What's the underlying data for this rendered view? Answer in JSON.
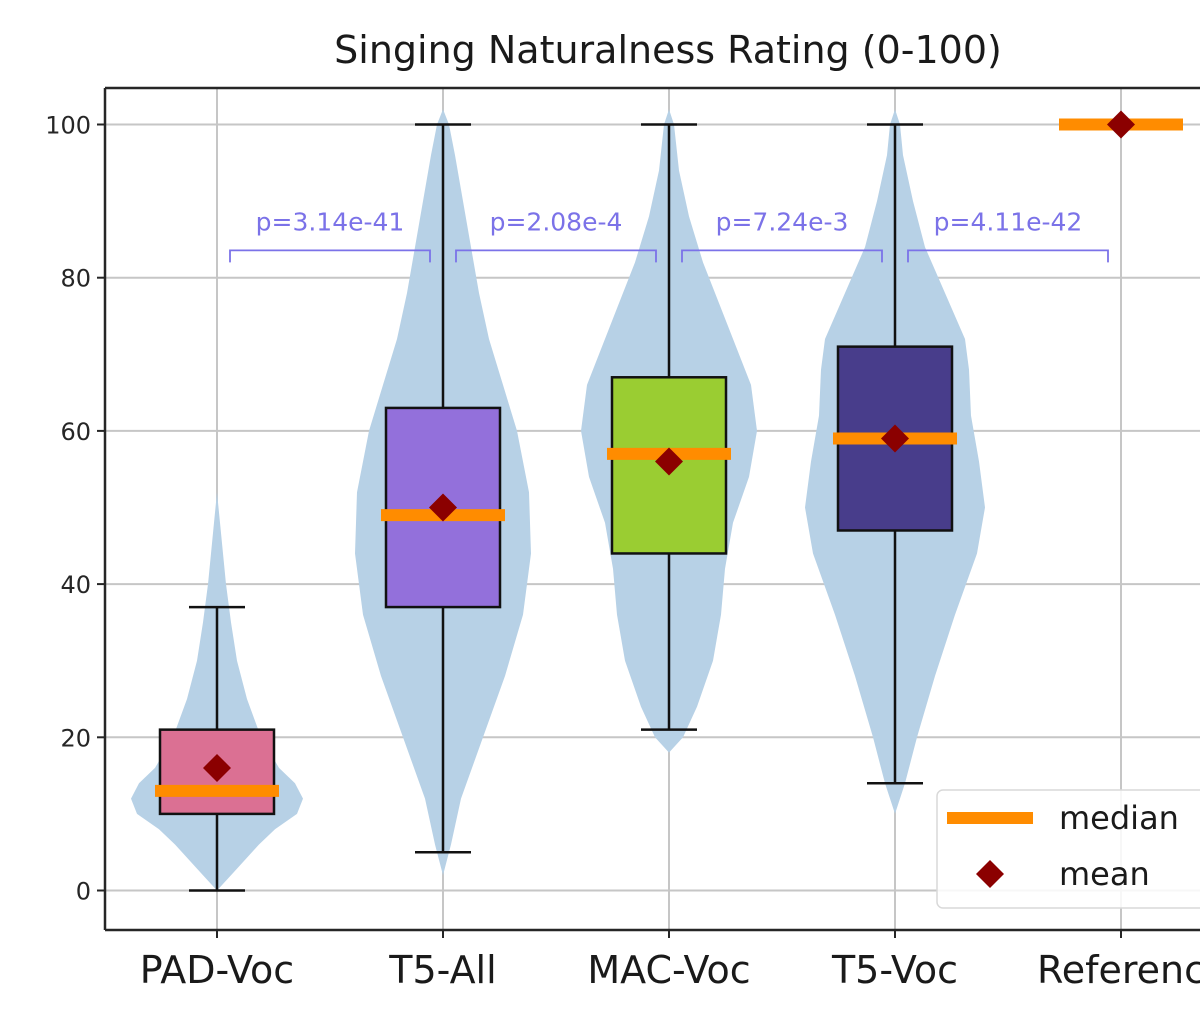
{
  "chart_data": {
    "type": "box-violin",
    "title": "Singing Naturalness Rating (0-100)",
    "ylim": [
      -5,
      105
    ],
    "yticks": [
      0,
      20,
      40,
      60,
      80,
      100
    ],
    "grid": true,
    "categories": [
      "PAD-Voc",
      "T5-All",
      "MAC-Voc",
      "T5-Voc",
      "Referenc"
    ],
    "boxes": [
      {
        "name": "PAD-Voc",
        "min": 0,
        "q1": 10,
        "median": 13,
        "q3": 21,
        "max": 37,
        "mean": 16,
        "color": "#db7093",
        "violin": [
          [
            0,
            0
          ],
          [
            2,
            14
          ],
          [
            4,
            28
          ],
          [
            6,
            42
          ],
          [
            8,
            58
          ],
          [
            10,
            80
          ],
          [
            12,
            86
          ],
          [
            14,
            78
          ],
          [
            16,
            62
          ],
          [
            20,
            44
          ],
          [
            25,
            30
          ],
          [
            30,
            20
          ],
          [
            35,
            14
          ],
          [
            40,
            9
          ],
          [
            44,
            6
          ],
          [
            48,
            3
          ],
          [
            52,
            0
          ]
        ]
      },
      {
        "name": "T5-All",
        "min": 5,
        "q1": 37,
        "median": 49,
        "q3": 63,
        "max": 100,
        "mean": 50,
        "color": "#9370db",
        "violin": [
          [
            2,
            0
          ],
          [
            6,
            8
          ],
          [
            12,
            18
          ],
          [
            20,
            40
          ],
          [
            28,
            62
          ],
          [
            36,
            80
          ],
          [
            44,
            88
          ],
          [
            52,
            86
          ],
          [
            60,
            74
          ],
          [
            66,
            60
          ],
          [
            72,
            46
          ],
          [
            78,
            36
          ],
          [
            84,
            28
          ],
          [
            90,
            20
          ],
          [
            96,
            12
          ],
          [
            100,
            6
          ],
          [
            102,
            0
          ]
        ]
      },
      {
        "name": "MAC-Voc",
        "min": 21,
        "q1": 44,
        "median": 57,
        "q3": 67,
        "max": 100,
        "mean": 56,
        "color": "#9acd32",
        "violin": [
          [
            18,
            0
          ],
          [
            20,
            14
          ],
          [
            24,
            28
          ],
          [
            30,
            44
          ],
          [
            36,
            52
          ],
          [
            42,
            56
          ],
          [
            48,
            64
          ],
          [
            54,
            80
          ],
          [
            60,
            88
          ],
          [
            66,
            82
          ],
          [
            70,
            70
          ],
          [
            76,
            52
          ],
          [
            82,
            34
          ],
          [
            88,
            20
          ],
          [
            94,
            10
          ],
          [
            100,
            5
          ],
          [
            102,
            0
          ]
        ]
      },
      {
        "name": "T5-Voc",
        "min": 14,
        "q1": 47,
        "median": 59,
        "q3": 71,
        "max": 100,
        "mean": 59,
        "color": "#483d8b",
        "violin": [
          [
            10,
            0
          ],
          [
            14,
            10
          ],
          [
            20,
            22
          ],
          [
            28,
            40
          ],
          [
            36,
            60
          ],
          [
            44,
            82
          ],
          [
            50,
            90
          ],
          [
            56,
            84
          ],
          [
            62,
            76
          ],
          [
            68,
            74
          ],
          [
            72,
            70
          ],
          [
            78,
            50
          ],
          [
            84,
            30
          ],
          [
            90,
            18
          ],
          [
            96,
            8
          ],
          [
            100,
            5
          ],
          [
            102,
            0
          ]
        ]
      },
      {
        "name": "Referenc",
        "min": 100,
        "q1": 100,
        "median": 100,
        "q3": 100,
        "max": 100,
        "mean": 100,
        "color": "#ff8c00",
        "violin": []
      }
    ],
    "pvalues": [
      {
        "from": 0,
        "to": 1,
        "label": "p=3.14e-41",
        "y": 82
      },
      {
        "from": 1,
        "to": 2,
        "label": "p=2.08e-4",
        "y": 82
      },
      {
        "from": 2,
        "to": 3,
        "label": "p=7.24e-3",
        "y": 82
      },
      {
        "from": 3,
        "to": 4,
        "label": "p=4.11e-42",
        "y": 82
      }
    ],
    "legend": {
      "position": "bottom-right",
      "items": [
        {
          "label": "median",
          "marker": "line",
          "color": "#ff8c00"
        },
        {
          "label": "mean",
          "marker": "diamond",
          "color": "#8b0000"
        }
      ]
    },
    "colors": {
      "violin": "#b7d1e6",
      "median": "#ff8c00",
      "mean": "#8b0000",
      "pvalue": "#7b72e8"
    }
  }
}
